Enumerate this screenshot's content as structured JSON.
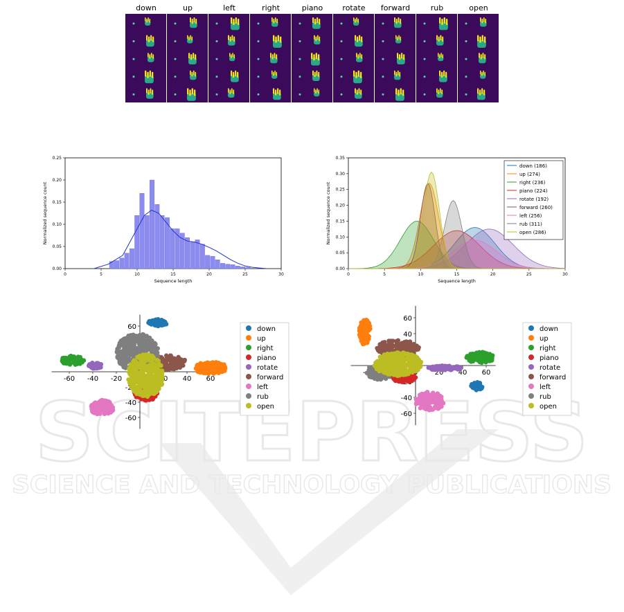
{
  "watermark": {
    "line1": "SCITEPRESS",
    "line2": "SCIENCE AND TECHNOLOGY PUBLICATIONS"
  },
  "gestures": {
    "labels": [
      "down",
      "up",
      "left",
      "right",
      "piano",
      "rotate",
      "forward",
      "rub",
      "open"
    ]
  },
  "colors": {
    "down": "#1f77b4",
    "up": "#ff7f0e",
    "right": "#2ca02c",
    "piano": "#d62728",
    "rotate": "#9467bd",
    "forward": "#8c564b",
    "left": "#e377c2",
    "rub": "#7f7f7f",
    "open": "#bcbd22",
    "frame_bg": "#3b0a5a",
    "hand": "#f5e61a",
    "hist_bar": "#8c8cf0",
    "hist_line": "#2233cc"
  },
  "chart_data": [
    {
      "type": "bar",
      "id": "hist",
      "xlabel": "Sequence length",
      "ylabel": "Normalized sequence count",
      "xlim": [
        0,
        30
      ],
      "ylim": [
        0,
        0.25
      ],
      "xticks": [
        "0",
        "5",
        "10",
        "15",
        "20",
        "25",
        "30"
      ],
      "yticks": [
        "0.00",
        "0.05",
        "0.10",
        "0.15",
        "0.20",
        "0.25"
      ],
      "bins_x": [
        6.5,
        7.2,
        7.9,
        8.6,
        9.3,
        10.0,
        10.7,
        11.4,
        12.1,
        12.8,
        13.5,
        14.2,
        14.9,
        15.6,
        16.3,
        17.0,
        17.7,
        18.4,
        19.1,
        19.8,
        20.5,
        21.2,
        21.9,
        22.6,
        23.3,
        24.0,
        24.7,
        25.4
      ],
      "values": [
        0.016,
        0.018,
        0.024,
        0.035,
        0.045,
        0.12,
        0.17,
        0.12,
        0.2,
        0.145,
        0.12,
        0.115,
        0.09,
        0.09,
        0.08,
        0.07,
        0.06,
        0.065,
        0.055,
        0.03,
        0.028,
        0.02,
        0.012,
        0.01,
        0.009,
        0.006,
        0.004,
        0.003
      ],
      "kde": {
        "x": [
          4,
          6,
          8,
          10,
          11,
          12,
          13,
          14,
          15,
          16,
          17,
          18,
          19,
          20,
          21,
          22,
          23,
          24,
          25,
          26,
          28
        ],
        "y": [
          0.0,
          0.01,
          0.03,
          0.09,
          0.12,
          0.132,
          0.125,
          0.105,
          0.085,
          0.07,
          0.062,
          0.06,
          0.055,
          0.048,
          0.04,
          0.03,
          0.02,
          0.012,
          0.006,
          0.003,
          0.0
        ]
      }
    },
    {
      "type": "area",
      "id": "kde",
      "xlabel": "Sequence length",
      "ylabel": "Normalized sequence count",
      "xlim": [
        0,
        30
      ],
      "ylim": [
        0,
        0.35
      ],
      "xticks": [
        "0",
        "5",
        "10",
        "15",
        "20",
        "25",
        "30"
      ],
      "yticks": [
        "0.00",
        "0.05",
        "0.10",
        "0.15",
        "0.20",
        "0.25",
        "0.30",
        "0.35"
      ],
      "legend_position": "top-right",
      "series": [
        {
          "name": "down (186)",
          "key": "down",
          "mu": 17.5,
          "sigma": 2.8,
          "peak": 0.13
        },
        {
          "name": "up (274)",
          "key": "up",
          "mu": 11.2,
          "sigma": 1.3,
          "peak": 0.27
        },
        {
          "name": "right (236)",
          "key": "right",
          "mu": 9.5,
          "sigma": 2.3,
          "peak": 0.15
        },
        {
          "name": "piano (224)",
          "key": "piano",
          "mu": 15.0,
          "sigma": 3.2,
          "peak": 0.12
        },
        {
          "name": "rotate (192)",
          "key": "rotate",
          "mu": 19.5,
          "sigma": 3.3,
          "peak": 0.125
        },
        {
          "name": "forward (260)",
          "key": "forward",
          "mu": 11.0,
          "sigma": 1.0,
          "peak": 0.27
        },
        {
          "name": "left (256)",
          "key": "left",
          "mu": 17.5,
          "sigma": 3.0,
          "peak": 0.09
        },
        {
          "name": "rub (311)",
          "key": "rub",
          "mu": 14.5,
          "sigma": 1.2,
          "peak": 0.215
        },
        {
          "name": "open (286)",
          "key": "open",
          "mu": 11.5,
          "sigma": 1.1,
          "peak": 0.305
        }
      ]
    },
    {
      "type": "scatter",
      "id": "tsne1",
      "xticks": [
        -60,
        -40,
        -20,
        0,
        20,
        40,
        60
      ],
      "yticks": [
        60,
        40,
        20,
        0,
        -20,
        -40,
        -60
      ],
      "legend_position": "right",
      "clusters": [
        {
          "label": "down",
          "cx": 15,
          "cy": 64,
          "rx": 8,
          "ry": 5
        },
        {
          "label": "up",
          "cx": 60,
          "cy": 5,
          "rx": 14,
          "ry": 8
        },
        {
          "label": "right",
          "cx": -57,
          "cy": 15,
          "rx": 10,
          "ry": 6
        },
        {
          "label": "rotate",
          "cx": -38,
          "cy": 8,
          "rx": 6,
          "ry": 4
        },
        {
          "label": "left",
          "cx": -32,
          "cy": -47,
          "rx": 10,
          "ry": 10
        },
        {
          "label": "forward",
          "cx": 20,
          "cy": 12,
          "rx": 20,
          "ry": 10
        },
        {
          "label": "rub",
          "cx": -2,
          "cy": 25,
          "rx": 18,
          "ry": 25
        },
        {
          "label": "piano",
          "cx": 5,
          "cy": -28,
          "rx": 10,
          "ry": 10
        },
        {
          "label": "open",
          "cx": 5,
          "cy": -5,
          "rx": 15,
          "ry": 28
        }
      ]
    },
    {
      "type": "scatter",
      "id": "tsne2",
      "xticks": [
        -40,
        -20,
        0,
        20,
        40,
        60
      ],
      "yticks": [
        60,
        40,
        20,
        0,
        -20,
        -40,
        -60
      ],
      "legend_position": "right",
      "clusters": [
        {
          "label": "up",
          "cx": -43,
          "cy": 42,
          "rx": 5,
          "ry": 16
        },
        {
          "label": "forward",
          "cx": -15,
          "cy": 22,
          "rx": 18,
          "ry": 10
        },
        {
          "label": "rub",
          "cx": -30,
          "cy": -8,
          "rx": 12,
          "ry": 10
        },
        {
          "label": "piano",
          "cx": -10,
          "cy": -15,
          "rx": 10,
          "ry": 6
        },
        {
          "label": "open",
          "cx": -15,
          "cy": 2,
          "rx": 20,
          "ry": 15
        },
        {
          "label": "rotate",
          "cx": 25,
          "cy": -3,
          "rx": 15,
          "ry": 3
        },
        {
          "label": "right",
          "cx": 55,
          "cy": 10,
          "rx": 12,
          "ry": 7
        },
        {
          "label": "down",
          "cx": 52,
          "cy": -26,
          "rx": 5,
          "ry": 5
        },
        {
          "label": "left",
          "cx": 12,
          "cy": -45,
          "rx": 12,
          "ry": 12
        }
      ]
    }
  ]
}
